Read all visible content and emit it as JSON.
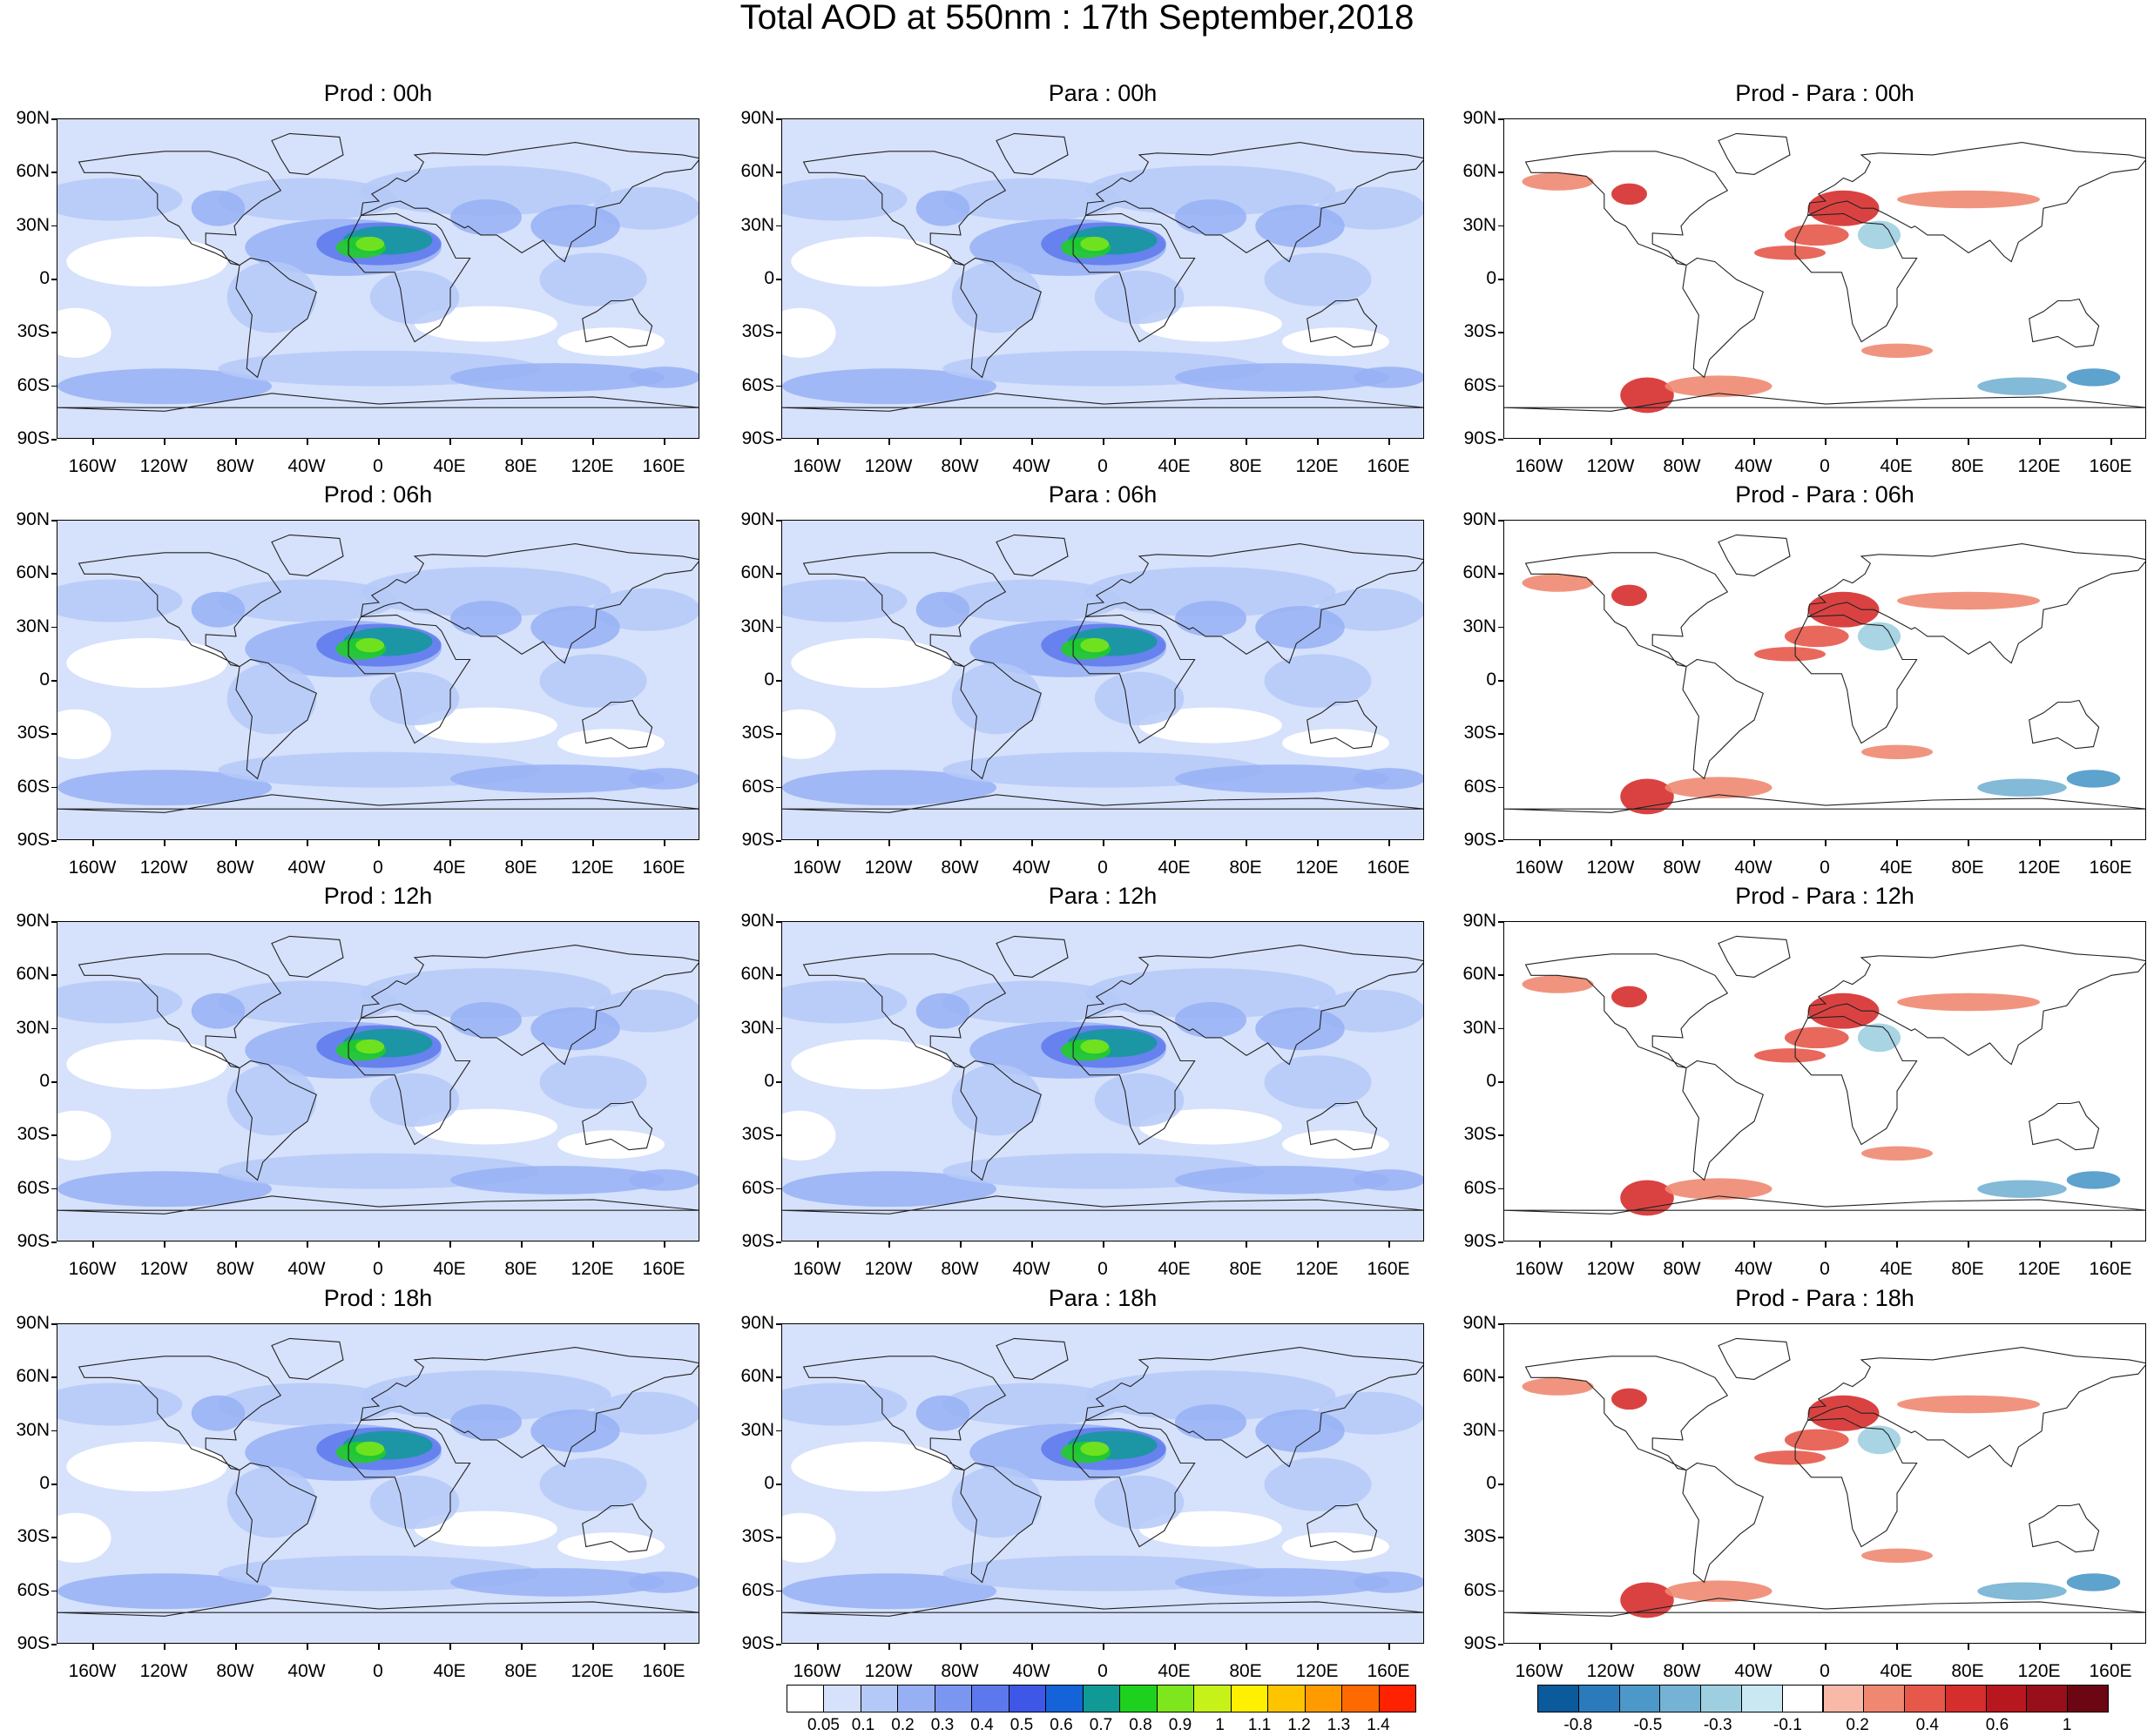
{
  "title": "Total AOD at 550nm : 17th September,2018",
  "lat_labels": [
    "90N",
    "60N",
    "30N",
    "0",
    "30S",
    "60S",
    "90S"
  ],
  "lon_labels": [
    "160W",
    "120W",
    "80W",
    "40W",
    "0",
    "40E",
    "80E",
    "120E",
    "160E"
  ],
  "panels": [
    {
      "title": "Prod : 00h",
      "kind": "aod"
    },
    {
      "title": "Para : 00h",
      "kind": "aod"
    },
    {
      "title": "Prod - Para : 00h",
      "kind": "diff"
    },
    {
      "title": "Prod : 06h",
      "kind": "aod"
    },
    {
      "title": "Para : 06h",
      "kind": "aod"
    },
    {
      "title": "Prod - Para : 06h",
      "kind": "diff"
    },
    {
      "title": "Prod : 12h",
      "kind": "aod"
    },
    {
      "title": "Para : 12h",
      "kind": "aod"
    },
    {
      "title": "Prod - Para : 12h",
      "kind": "diff"
    },
    {
      "title": "Prod : 18h",
      "kind": "aod"
    },
    {
      "title": "Para : 18h",
      "kind": "aod"
    },
    {
      "title": "Prod - Para : 18h",
      "kind": "diff"
    }
  ],
  "aod_colorbar": {
    "labels": [
      "0.05",
      "0.1",
      "0.2",
      "0.3",
      "0.4",
      "0.5",
      "0.6",
      "0.7",
      "0.8",
      "0.9",
      "1",
      "1.1",
      "1.2",
      "1.3",
      "1.4"
    ],
    "colors": [
      "#ffffff",
      "#d6e1fb",
      "#b5c9f8",
      "#97b0f4",
      "#7b96f0",
      "#5d77ec",
      "#3f57e6",
      "#1463d8",
      "#0f9a96",
      "#1fd11f",
      "#7ee61d",
      "#c6f21a",
      "#fff000",
      "#ffc400",
      "#ff9a00",
      "#ff6a00",
      "#ff2200"
    ]
  },
  "diff_colorbar": {
    "labels": [
      "-0.8",
      "-0.5",
      "-0.3",
      "-0.1",
      "0.2",
      "0.4",
      "0.6",
      "1"
    ],
    "colors": [
      "#0b5a9c",
      "#2b7bbc",
      "#4c98c9",
      "#74b3d4",
      "#9ecfe0",
      "#c9e8f1",
      "#ffffff",
      "#f8b9a8",
      "#f08871",
      "#e6584a",
      "#d62d2d",
      "#b91720",
      "#960f1a",
      "#6b0612"
    ]
  }
}
